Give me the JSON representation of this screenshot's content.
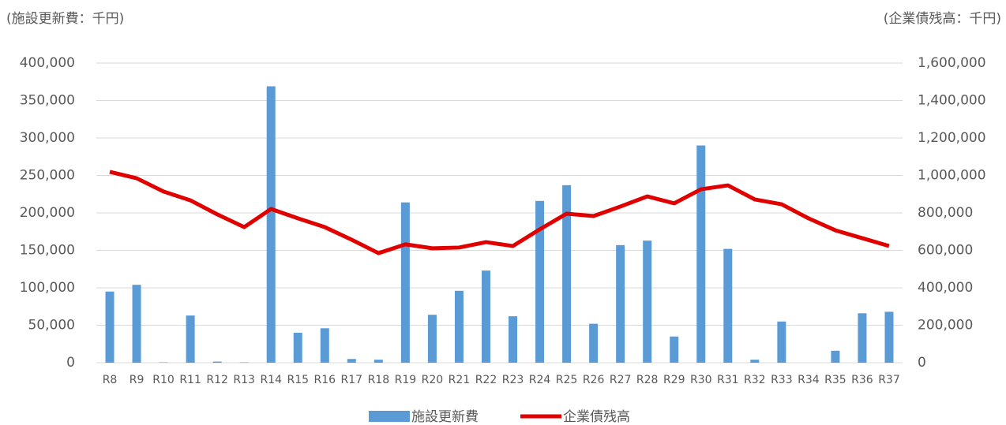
{
  "chart_data": {
    "type": "bar_line",
    "y_label": "(施設更新費：千円)",
    "y2_label": "(企業債残高：千円)",
    "categories": [
      "R8",
      "R9",
      "R10",
      "R11",
      "R12",
      "R13",
      "R14",
      "R15",
      "R16",
      "R17",
      "R18",
      "R19",
      "R20",
      "R21",
      "R22",
      "R23",
      "R24",
      "R25",
      "R26",
      "R27",
      "R28",
      "R29",
      "R30",
      "R31",
      "R32",
      "R33",
      "R34",
      "R35",
      "R36",
      "R37"
    ],
    "series": [
      {
        "name": "施設更新費",
        "type": "bar",
        "color": "#5b9bd5",
        "values": [
          95000,
          104000,
          500,
          63000,
          1500,
          500,
          369000,
          40000,
          46000,
          5000,
          4000,
          214000,
          64000,
          96000,
          123000,
          62000,
          216000,
          237000,
          52000,
          157000,
          163000,
          35000,
          290000,
          152000,
          4000,
          55000,
          0,
          16000,
          66000,
          68000
        ]
      },
      {
        "name": "企業債残高",
        "type": "line",
        "axis": "y2",
        "color": "#e00000",
        "values": [
          1019000,
          985000,
          914000,
          867000,
          792000,
          724000,
          821000,
          771000,
          724000,
          657000,
          585000,
          632000,
          611000,
          615000,
          644000,
          623000,
          712000,
          796000,
          783000,
          834000,
          888000,
          851000,
          926000,
          947000,
          872000,
          846000,
          771000,
          707000,
          665000,
          623000
        ]
      }
    ],
    "ylim": [
      0,
      400000
    ],
    "yticks": [
      0,
      {
        "value": 50000,
        "label": "50,000"
      },
      {
        "value": 100000,
        "label": "100,000"
      },
      {
        "value": 150000,
        "label": "150,000"
      },
      {
        "value": 200000,
        "label": "200,000"
      },
      {
        "value": 250000,
        "label": "250,000"
      },
      {
        "value": 300000,
        "label": "300,000"
      },
      {
        "value": 350000,
        "label": "350,000"
      },
      {
        "value": 400000,
        "label": "400,000"
      }
    ],
    "y2lim": [
      0,
      1600000
    ],
    "y2ticks": [
      0,
      {
        "value": 200000,
        "label": "200,000"
      },
      {
        "value": 400000,
        "label": "400,000"
      },
      {
        "value": 600000,
        "label": "600,000"
      },
      {
        "value": 800000,
        "label": "800,000"
      },
      {
        "value": 1000000,
        "label": "1,000,000"
      },
      {
        "value": 1200000,
        "label": "1,200,000"
      },
      {
        "value": 1400000,
        "label": "1,400,000"
      },
      {
        "value": 1600000,
        "label": "1,600,000"
      }
    ],
    "grid": true,
    "legend": "bottom"
  }
}
